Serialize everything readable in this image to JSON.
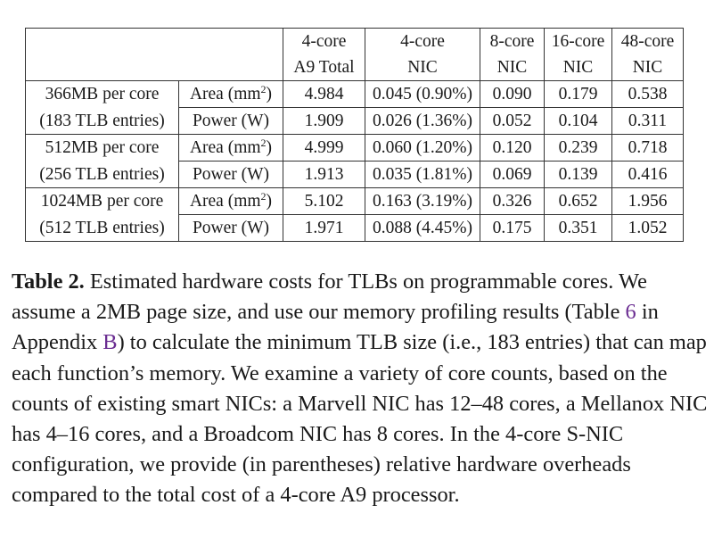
{
  "table": {
    "header": {
      "row1": [
        "4-core",
        "4-core",
        "8-core",
        "16-core",
        "48-core"
      ],
      "row2": [
        "A9 Total",
        "NIC",
        "NIC",
        "NIC",
        "NIC"
      ]
    },
    "groups": [
      {
        "label_line1": "366MB per core",
        "label_line2": "(183 TLB entries)",
        "area_label": "Area (mm",
        "area_sup": "2",
        "area_close": ")",
        "power_label": "Power (W)",
        "area": [
          "4.984",
          "0.045 (0.90%)",
          "0.090",
          "0.179",
          "0.538"
        ],
        "power": [
          "1.909",
          "0.026 (1.36%)",
          "0.052",
          "0.104",
          "0.311"
        ]
      },
      {
        "label_line1": "512MB per core",
        "label_line2": "(256 TLB entries)",
        "area_label": "Area (mm",
        "area_sup": "2",
        "area_close": ")",
        "power_label": "Power (W)",
        "area": [
          "4.999",
          "0.060 (1.20%)",
          "0.120",
          "0.239",
          "0.718"
        ],
        "power": [
          "1.913",
          "0.035 (1.81%)",
          "0.069",
          "0.139",
          "0.416"
        ]
      },
      {
        "label_line1": "1024MB per core",
        "label_line2": "(512 TLB entries)",
        "area_label": "Area (mm",
        "area_sup": "2",
        "area_close": ")",
        "power_label": "Power (W)",
        "area": [
          "5.102",
          "0.163 (3.19%)",
          "0.326",
          "0.652",
          "1.956"
        ],
        "power": [
          "1.971",
          "0.088 (4.45%)",
          "0.175",
          "0.351",
          "1.052"
        ]
      }
    ]
  },
  "caption": {
    "label": "Table 2.",
    "text_1": " Estimated hardware costs for TLBs on programmable cores. We assume a 2MB page size, and use our memory profiling results (Table ",
    "ref_table": "6",
    "text_2": " in Appendix ",
    "ref_appendix": "B",
    "text_3": ") to calculate the minimum TLB size (i.e., 183 entries) that can map each function’s memory. We examine a variety of core counts, based on the counts of existing smart NICs: a Marvell NIC has 12–48 cores, a Mellanox NIC has 4–16 cores, and a Broadcom NIC has 8 cores. In the 4-core S-NIC configuration, we provide (in parentheses) relative hardware overheads compared to the total cost of a 4-core A9 processor."
  }
}
